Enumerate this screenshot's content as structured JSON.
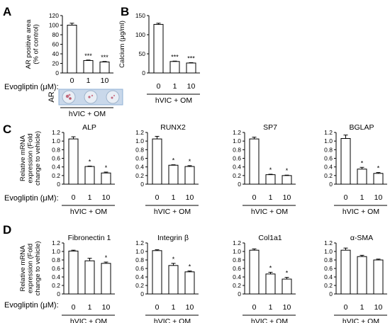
{
  "panel_letters": [
    "A",
    "B",
    "C",
    "D"
  ],
  "row_label": "Evogliptin (μM):",
  "group_label": "hVIC + OM",
  "ar_image_label": "AR",
  "star_colors": {
    "bar_fill": "#ffffff",
    "bar_stroke": "#000000",
    "well_bg": "#c9d8ea",
    "well_border": "#8fb1d6",
    "stain": "#c2687c"
  },
  "chart_data": [
    {
      "id": "A",
      "type": "bar",
      "title": "",
      "ylabel": "AR positive area\n(% of control)",
      "ylim": [
        0,
        120
      ],
      "yticks": [
        0,
        20,
        40,
        60,
        80,
        100,
        120
      ],
      "categories": [
        "0",
        "1",
        "10"
      ],
      "values": [
        100,
        26,
        23
      ],
      "errors": [
        4,
        1,
        1
      ],
      "annotations": [
        "",
        "***",
        "***"
      ]
    },
    {
      "id": "B",
      "type": "bar",
      "title": "",
      "ylabel": "Calcium (μg/ml)",
      "ylim": [
        0,
        150
      ],
      "yticks": [
        0,
        50,
        100,
        150
      ],
      "categories": [
        "0",
        "1",
        "10"
      ],
      "values": [
        127,
        30,
        26
      ],
      "errors": [
        3,
        1,
        1
      ],
      "annotations": [
        "",
        "***",
        "***"
      ]
    },
    {
      "id": "C1",
      "type": "bar",
      "title": "ALP",
      "ylabel": "Relative mRNA\nexpression (Fold\nchange to vehicle)",
      "ylim": [
        0,
        1.2
      ],
      "yticks": [
        0,
        0.2,
        0.4,
        0.6,
        0.8,
        1.0,
        1.2
      ],
      "categories": [
        "0",
        "1",
        "10"
      ],
      "values": [
        1.05,
        0.41,
        0.26
      ],
      "errors": [
        0.05,
        0.01,
        0.02
      ],
      "annotations": [
        "",
        "*",
        "*"
      ]
    },
    {
      "id": "C2",
      "type": "bar",
      "title": "RUNX2",
      "ylabel": "",
      "ylim": [
        0,
        1.2
      ],
      "yticks": [
        0,
        0.2,
        0.4,
        0.6,
        0.8,
        1.0,
        1.2
      ],
      "categories": [
        "0",
        "1",
        "10"
      ],
      "values": [
        1.05,
        0.44,
        0.41
      ],
      "errors": [
        0.06,
        0.01,
        0.02
      ],
      "annotations": [
        "",
        "*",
        "*"
      ]
    },
    {
      "id": "C3",
      "type": "bar",
      "title": "SP7",
      "ylabel": "",
      "ylim": [
        0,
        1.2
      ],
      "yticks": [
        0,
        0.2,
        0.4,
        0.6,
        0.8,
        1.0,
        1.2
      ],
      "categories": [
        "0",
        "1",
        "10"
      ],
      "values": [
        1.05,
        0.22,
        0.2
      ],
      "errors": [
        0.04,
        0.01,
        0.01
      ],
      "annotations": [
        "",
        "*",
        "*"
      ]
    },
    {
      "id": "C4",
      "type": "bar",
      "title": "BGLAP",
      "ylabel": "",
      "ylim": [
        0,
        1.2
      ],
      "yticks": [
        0,
        0.2,
        0.4,
        0.6,
        0.8,
        1.0,
        1.2
      ],
      "categories": [
        "0",
        "1",
        "10"
      ],
      "values": [
        1.06,
        0.35,
        0.25
      ],
      "errors": [
        0.08,
        0.04,
        0.02
      ],
      "annotations": [
        "",
        "*",
        "*"
      ]
    },
    {
      "id": "D1",
      "type": "bar",
      "title": "Fibronectin 1",
      "ylabel": "Relative mRNA\nexpression (Fold\nchange to vehicle)",
      "ylim": [
        0,
        1.2
      ],
      "yticks": [
        0,
        0.2,
        0.4,
        0.6,
        0.8,
        1.0,
        1.2
      ],
      "categories": [
        "0",
        "1",
        "10"
      ],
      "values": [
        1.01,
        0.78,
        0.72
      ],
      "errors": [
        0.02,
        0.06,
        0.03
      ],
      "annotations": [
        "",
        "",
        "*"
      ]
    },
    {
      "id": "D2",
      "type": "bar",
      "title": "Integrin β",
      "ylabel": "",
      "ylim": [
        0,
        1.2
      ],
      "yticks": [
        0,
        0.2,
        0.4,
        0.6,
        0.8,
        1.0,
        1.2
      ],
      "categories": [
        "0",
        "1",
        "10"
      ],
      "values": [
        1.02,
        0.67,
        0.52
      ],
      "errors": [
        0.02,
        0.05,
        0.02
      ],
      "annotations": [
        "",
        "*",
        "*"
      ]
    },
    {
      "id": "D3",
      "type": "bar",
      "title": "Col1a1",
      "ylabel": "",
      "ylim": [
        0,
        1.2
      ],
      "yticks": [
        0,
        0.2,
        0.4,
        0.6,
        0.8,
        1.0,
        1.2
      ],
      "categories": [
        "0",
        "1",
        "10"
      ],
      "values": [
        1.03,
        0.47,
        0.35
      ],
      "errors": [
        0.03,
        0.04,
        0.04
      ],
      "annotations": [
        "",
        "*",
        "*"
      ]
    },
    {
      "id": "D4",
      "type": "bar",
      "title": "α-SMA",
      "ylabel": "",
      "ylim": [
        0,
        1.2
      ],
      "yticks": [
        0,
        0.2,
        0.4,
        0.6,
        0.8,
        1.0,
        1.2
      ],
      "categories": [
        "0",
        "1",
        "10"
      ],
      "values": [
        1.03,
        0.88,
        0.8
      ],
      "errors": [
        0.05,
        0.03,
        0.02
      ],
      "annotations": [
        "",
        "",
        ""
      ]
    }
  ]
}
